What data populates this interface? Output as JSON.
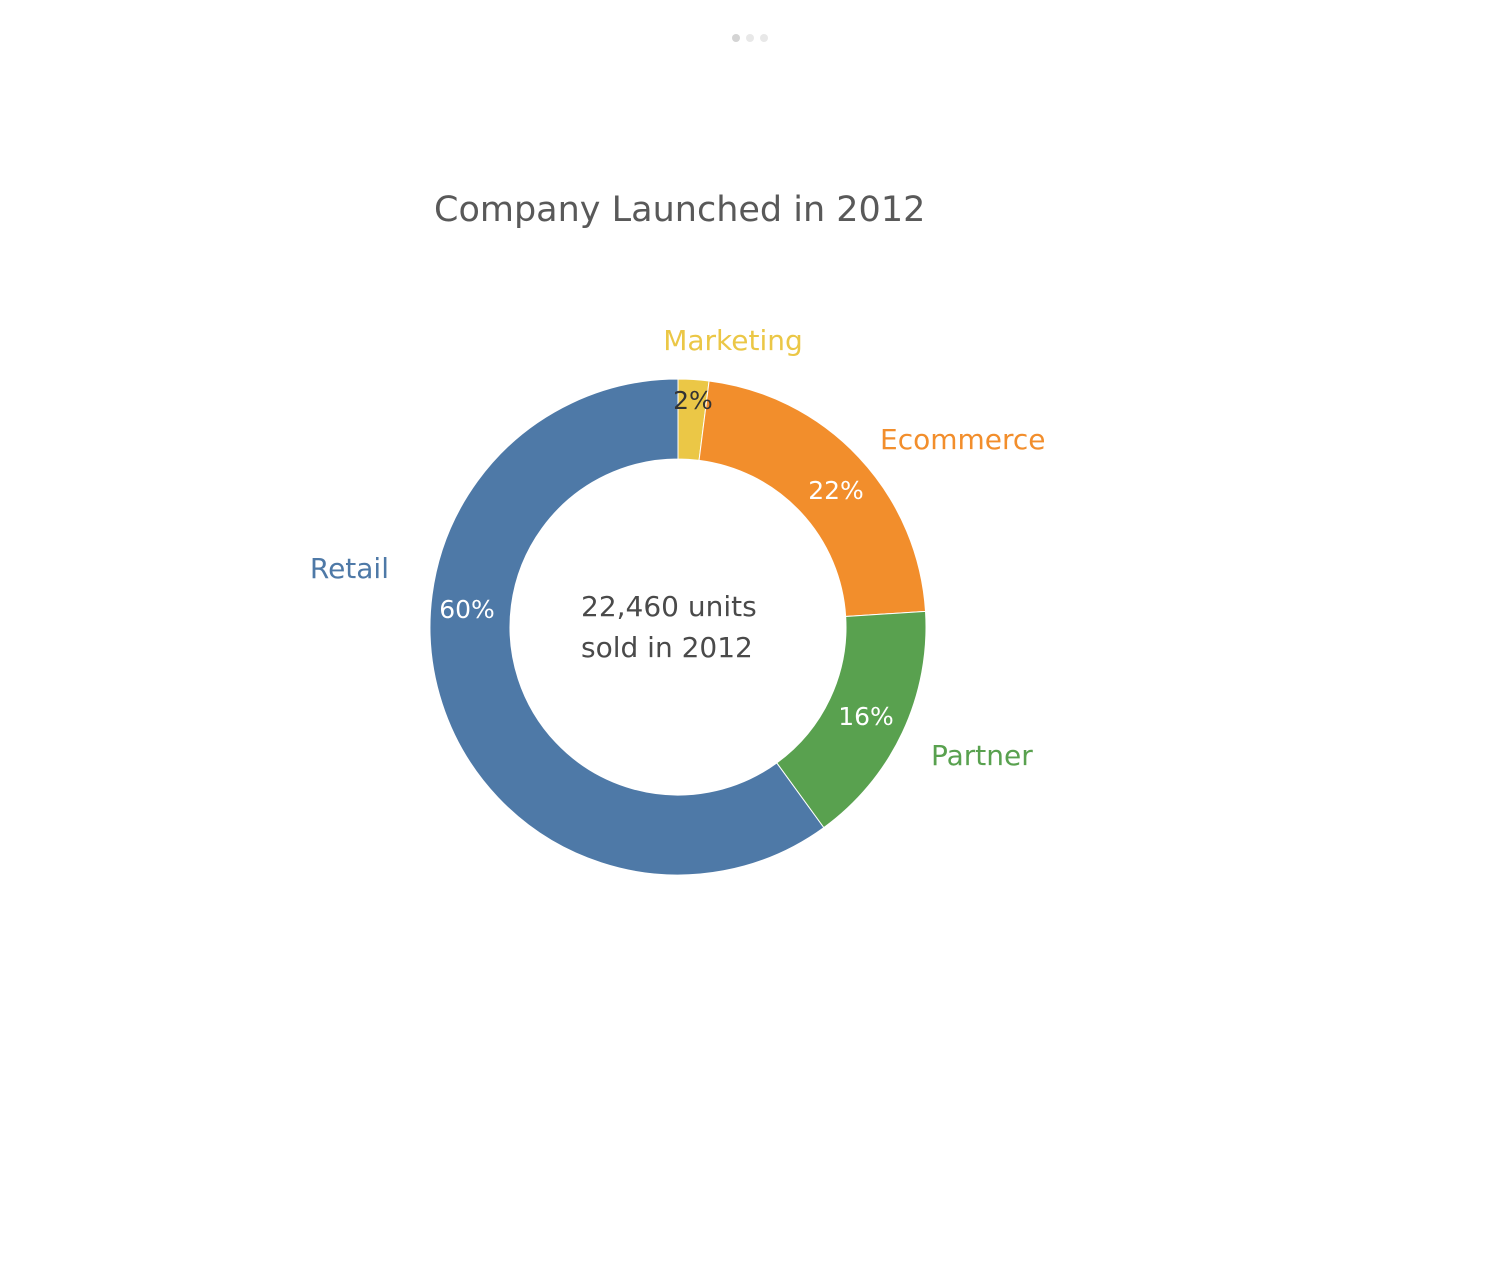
{
  "pager": {
    "pages": 3,
    "active_index": 0
  },
  "chart_data": {
    "type": "pie",
    "style": "donut",
    "title": "Company Launched in 2012",
    "center_text": [
      "22,460 units",
      "sold in 2012"
    ],
    "slices": [
      {
        "label": "Marketing",
        "value": 2,
        "display": "2%",
        "color": "#ebc746",
        "pct_color": "#333333"
      },
      {
        "label": "Ecommerce",
        "value": 22,
        "display": "22%",
        "color": "#f28e2c",
        "pct_color": "#ffffff"
      },
      {
        "label": "Partner",
        "value": 16,
        "display": "16%",
        "color": "#59a14f",
        "pct_color": "#ffffff"
      },
      {
        "label": "Retail",
        "value": 60,
        "display": "60%",
        "color": "#4e79a7",
        "pct_color": "#ffffff"
      }
    ],
    "start_angle": "top",
    "direction": "clockwise"
  }
}
